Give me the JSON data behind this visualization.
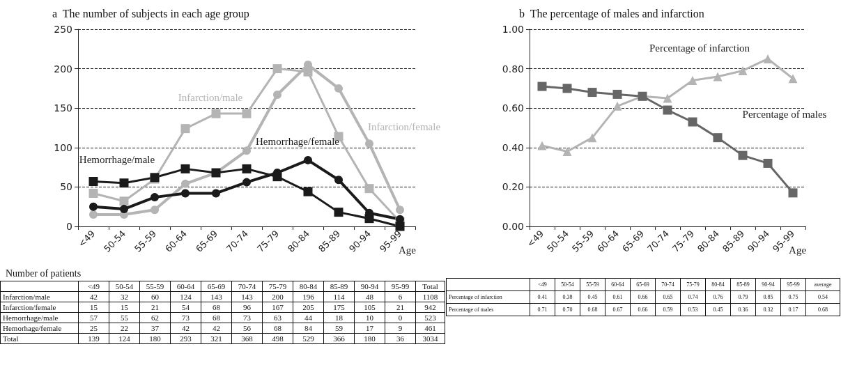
{
  "chart_data": [
    {
      "type": "line",
      "title": "a  The number of subjects in each age group",
      "xlabel": "Age",
      "categories": [
        "<49",
        "50-54",
        "55-59",
        "60-64",
        "65-69",
        "70-74",
        "75-79",
        "80-84",
        "85-89",
        "90-94",
        "95-99"
      ],
      "series": [
        {
          "name": "Infarction/male",
          "color": "#b4b4b4",
          "marker": "square",
          "values": [
            42,
            32,
            60,
            124,
            143,
            143,
            200,
            196,
            114,
            48,
            6
          ]
        },
        {
          "name": "Infarction/female",
          "color": "#b4b4b4",
          "marker": "circle",
          "values": [
            15,
            15,
            21,
            54,
            68,
            96,
            167,
            205,
            175,
            105,
            21
          ]
        },
        {
          "name": "Hemorrhage/male",
          "color": "#1a1a1a",
          "marker": "square",
          "values": [
            57,
            55,
            62,
            73,
            68,
            73,
            63,
            44,
            18,
            10,
            0
          ]
        },
        {
          "name": "Hemorrhage/female",
          "color": "#1a1a1a",
          "marker": "circle",
          "values": [
            25,
            22,
            37,
            42,
            42,
            56,
            68,
            84,
            59,
            17,
            9
          ]
        }
      ],
      "ylim": [
        0,
        250
      ],
      "yticks": [
        0,
        50,
        100,
        150,
        200,
        250
      ],
      "grid": "y",
      "line_style": "solid",
      "data_labels": true,
      "totals": [
        "139",
        "124",
        "180",
        "293",
        "321",
        "368",
        "498",
        "529",
        "366",
        "180",
        "36"
      ],
      "annotations": [
        "Number of patients",
        "Total",
        "1108",
        "942",
        "523",
        "461",
        "3034",
        "Infarction/male",
        "Infarction/female",
        "Hemorrhage/male",
        "Hemorhage/female"
      ]
    },
    {
      "type": "line",
      "title": "b  The percentage of males and infarction",
      "xlabel": "Age",
      "categories": [
        "<49",
        "50-54",
        "55-59",
        "60-64",
        "65-69",
        "70-74",
        "75-79",
        "80-84",
        "85-89",
        "90-94",
        "95-99"
      ],
      "series": [
        {
          "name": "Percentage of infarction",
          "color": "#b4b4b4",
          "marker": "triangle",
          "values": [
            0.41,
            0.38,
            0.45,
            0.61,
            0.66,
            0.65,
            0.74,
            0.76,
            0.79,
            0.85,
            0.75
          ],
          "value_labels": [
            "0.41",
            "0.38",
            "0.45",
            "0.61",
            "0.66",
            "0.65",
            "0.74",
            "0.76",
            "0.79",
            "0.85",
            "0.75"
          ]
        },
        {
          "name": "Percentage of males",
          "color": "#666666",
          "marker": "square",
          "values": [
            0.71,
            0.7,
            0.68,
            0.67,
            0.66,
            0.59,
            0.53,
            0.45,
            0.36,
            0.32,
            0.17
          ],
          "value_labels": [
            "0.71",
            "0.70",
            "0.68",
            "0.67",
            "0.66",
            "0.59",
            "0.53",
            "0.45",
            "0.36",
            "0.32",
            "0.17"
          ]
        }
      ],
      "ylim": [
        0,
        1
      ],
      "yticks": [
        {
          "value": 0,
          "label": "0.00"
        },
        {
          "value": 0.2,
          "label": "0.20"
        },
        {
          "value": 0.4,
          "label": "0.40"
        },
        {
          "value": 0.6,
          "label": "0.60"
        },
        {
          "value": 0.8,
          "label": "0.80"
        },
        {
          "value": 1,
          "label": "1.00"
        }
      ],
      "grid": "y",
      "line_style": "solid",
      "annotations": [
        "average",
        "0.54",
        "0.68"
      ]
    }
  ]
}
